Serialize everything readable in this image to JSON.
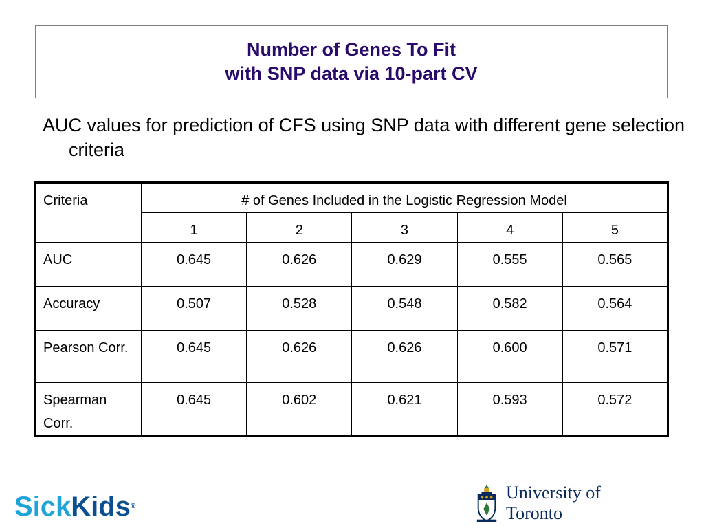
{
  "title": {
    "line1": "Number of Genes To Fit",
    "line2": "with SNP data via 10-part CV"
  },
  "bullet": "AUC values for prediction of CFS using SNP data with different gene selection criteria",
  "table": {
    "criteria_header": "Criteria",
    "group_header": "# of Genes Included in the Logistic Regression Model",
    "gene_counts": [
      "1",
      "2",
      "3",
      "4",
      "5"
    ],
    "rows": [
      {
        "label": "AUC",
        "values": [
          "0.645",
          "0.626",
          "0.629",
          "0.555",
          "0.565"
        ]
      },
      {
        "label": "Accuracy",
        "values": [
          "0.507",
          "0.528",
          "0.548",
          "0.582",
          "0.564"
        ]
      },
      {
        "label": "Pearson Corr.",
        "values": [
          "0.645",
          "0.626",
          "0.626",
          "0.600",
          "0.571"
        ]
      },
      {
        "label": "Spearman Corr.",
        "values": [
          "0.645",
          "0.602",
          "0.621",
          "0.593",
          "0.572"
        ]
      }
    ]
  },
  "logos": {
    "sickkids_sick": "Sick",
    "sickkids_kids": "Kids",
    "sickkids_tm": "®",
    "uoft_name": "University of Toronto"
  },
  "colors": {
    "title": "#2a0a6b",
    "sickkids_light": "#1ea4d8",
    "sickkids_dark": "#0b4f8f",
    "uoft_blue": "#0b2a5c"
  }
}
